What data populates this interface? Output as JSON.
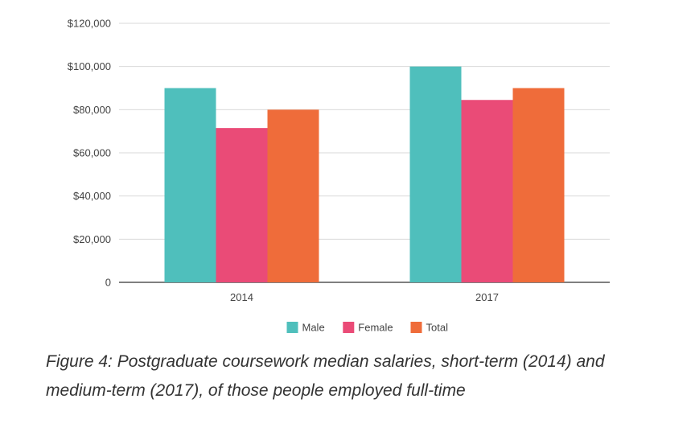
{
  "chart_data": {
    "type": "bar",
    "categories": [
      "2014",
      "2017"
    ],
    "series": [
      {
        "name": "Male",
        "values": [
          90000,
          100000
        ],
        "color": "#4fbfbc"
      },
      {
        "name": "Female",
        "values": [
          71500,
          84500
        ],
        "color": "#ea4b77"
      },
      {
        "name": "Total",
        "values": [
          80000,
          90000
        ],
        "color": "#ef6c3a"
      }
    ],
    "yticks": [
      "0",
      "$20,000",
      "$40,000",
      "$60,000",
      "$80,000",
      "$100,000",
      "$120,000"
    ],
    "ylim": [
      0,
      120000
    ],
    "grid": true,
    "legend": "bottom-center"
  },
  "caption": "Figure 4: Postgraduate coursework median salaries, short-term (2014) and medium-term (2017), of those people employed full-time"
}
